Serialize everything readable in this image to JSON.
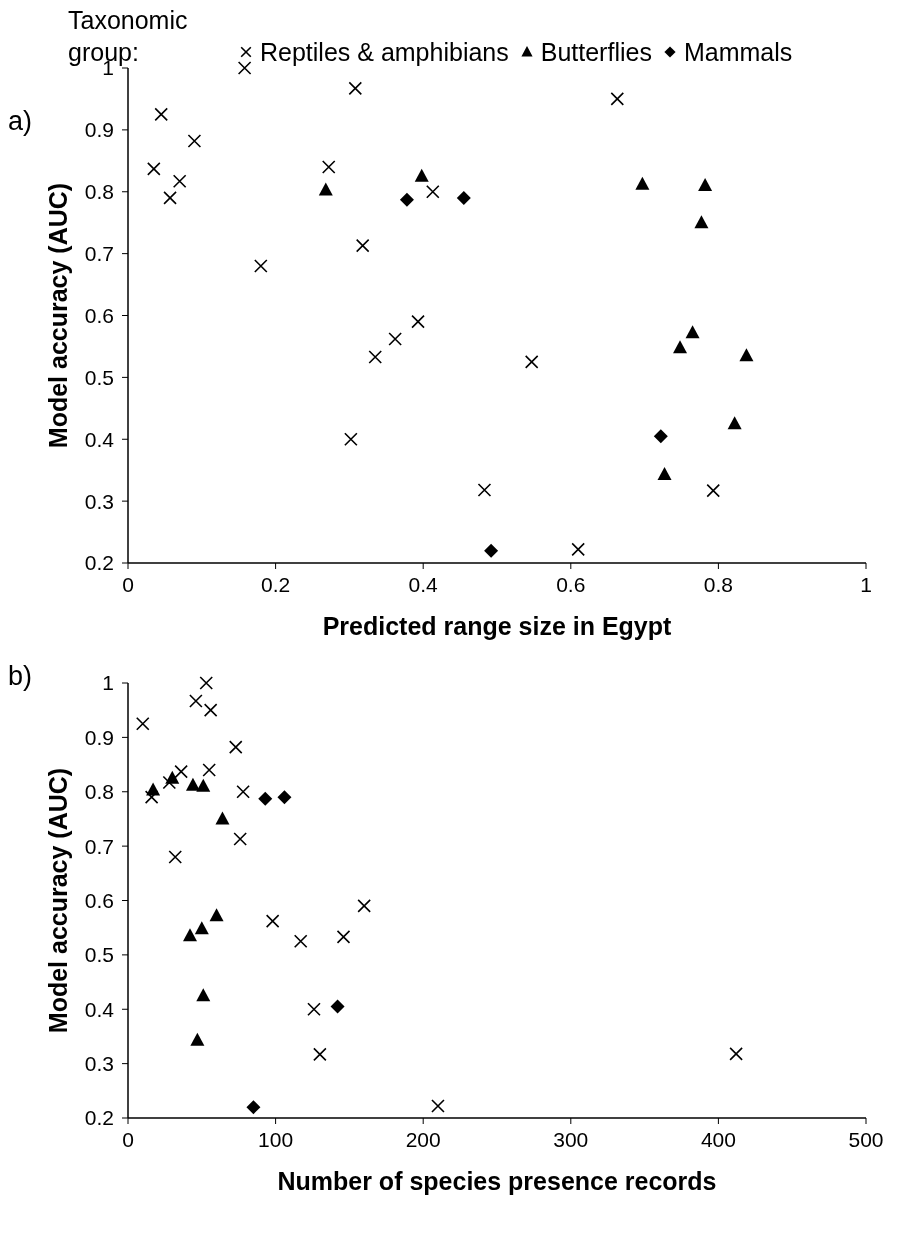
{
  "chart_data": [
    {
      "type": "scatter",
      "title": "a)",
      "xlabel": "Predicted range size in Egypt",
      "ylabel": "Model accuracy (AUC)",
      "legend_title": "Taxonomic group:",
      "legend": "top",
      "grid": false,
      "xlim": [
        0,
        1
      ],
      "xticks": [
        0,
        0.2,
        0.4,
        0.6,
        0.8,
        1
      ],
      "ylim": [
        0.2,
        1
      ],
      "yticks": [
        0.2,
        0.3,
        0.4,
        0.5,
        0.6,
        0.7,
        0.8,
        0.9,
        1
      ],
      "series": [
        {
          "name": "Reptiles & amphibians",
          "color": "#000000",
          "marker": "cross",
          "x": [
            0.035,
            0.045,
            0.057,
            0.07,
            0.09,
            0.158,
            0.18,
            0.272,
            0.308,
            0.318,
            0.302,
            0.335,
            0.362,
            0.393,
            0.413,
            0.483,
            0.547,
            0.61,
            0.663,
            0.793
          ],
          "values": [
            0.837,
            0.925,
            0.79,
            0.817,
            0.882,
            1.0,
            0.68,
            0.84,
            0.967,
            0.713,
            0.4,
            0.533,
            0.562,
            0.59,
            0.8,
            0.318,
            0.525,
            0.222,
            0.95,
            0.317
          ]
        },
        {
          "name": "Butterflies",
          "color": "#000000",
          "marker": "triangle",
          "x": [
            0.268,
            0.398,
            0.697,
            0.782,
            0.777,
            0.748,
            0.765,
            0.838,
            0.822,
            0.727
          ],
          "values": [
            0.803,
            0.825,
            0.812,
            0.81,
            0.75,
            0.548,
            0.572,
            0.535,
            0.425,
            0.343
          ]
        },
        {
          "name": "Mammals",
          "color": "#000000",
          "marker": "diamond",
          "x": [
            0.378,
            0.455,
            0.722,
            0.492
          ],
          "values": [
            0.787,
            0.79,
            0.405,
            0.22
          ]
        }
      ]
    },
    {
      "type": "scatter",
      "title": "b)",
      "xlabel": "Number of species presence records",
      "ylabel": "Model accuracy (AUC)",
      "legend": false,
      "grid": false,
      "xlim": [
        0,
        500
      ],
      "xticks": [
        0,
        100,
        200,
        300,
        400,
        500
      ],
      "ylim": [
        0.2,
        1
      ],
      "yticks": [
        0.2,
        0.3,
        0.4,
        0.5,
        0.6,
        0.7,
        0.8,
        0.9,
        1
      ],
      "series": [
        {
          "color": "#000000",
          "marker": "cross",
          "x": [
            10,
            16,
            28,
            36,
            46,
            53,
            56,
            55,
            73,
            32,
            78,
            76,
            98,
            117,
            146,
            160,
            126,
            130,
            210,
            412
          ],
          "values": [
            0.925,
            0.79,
            0.817,
            0.837,
            0.967,
            1.0,
            0.95,
            0.84,
            0.882,
            0.68,
            0.8,
            0.713,
            0.562,
            0.525,
            0.533,
            0.59,
            0.4,
            0.317,
            0.222,
            0.318
          ]
        },
        {
          "color": "#000000",
          "marker": "triangle",
          "x": [
            17,
            30,
            44,
            51,
            64,
            42,
            50,
            60,
            51,
            47
          ],
          "values": [
            0.803,
            0.825,
            0.812,
            0.81,
            0.75,
            0.535,
            0.548,
            0.572,
            0.425,
            0.343
          ]
        },
        {
          "color": "#000000",
          "marker": "diamond",
          "x": [
            93,
            106,
            142,
            85
          ],
          "values": [
            0.787,
            0.79,
            0.405,
            0.22
          ]
        }
      ]
    }
  ]
}
